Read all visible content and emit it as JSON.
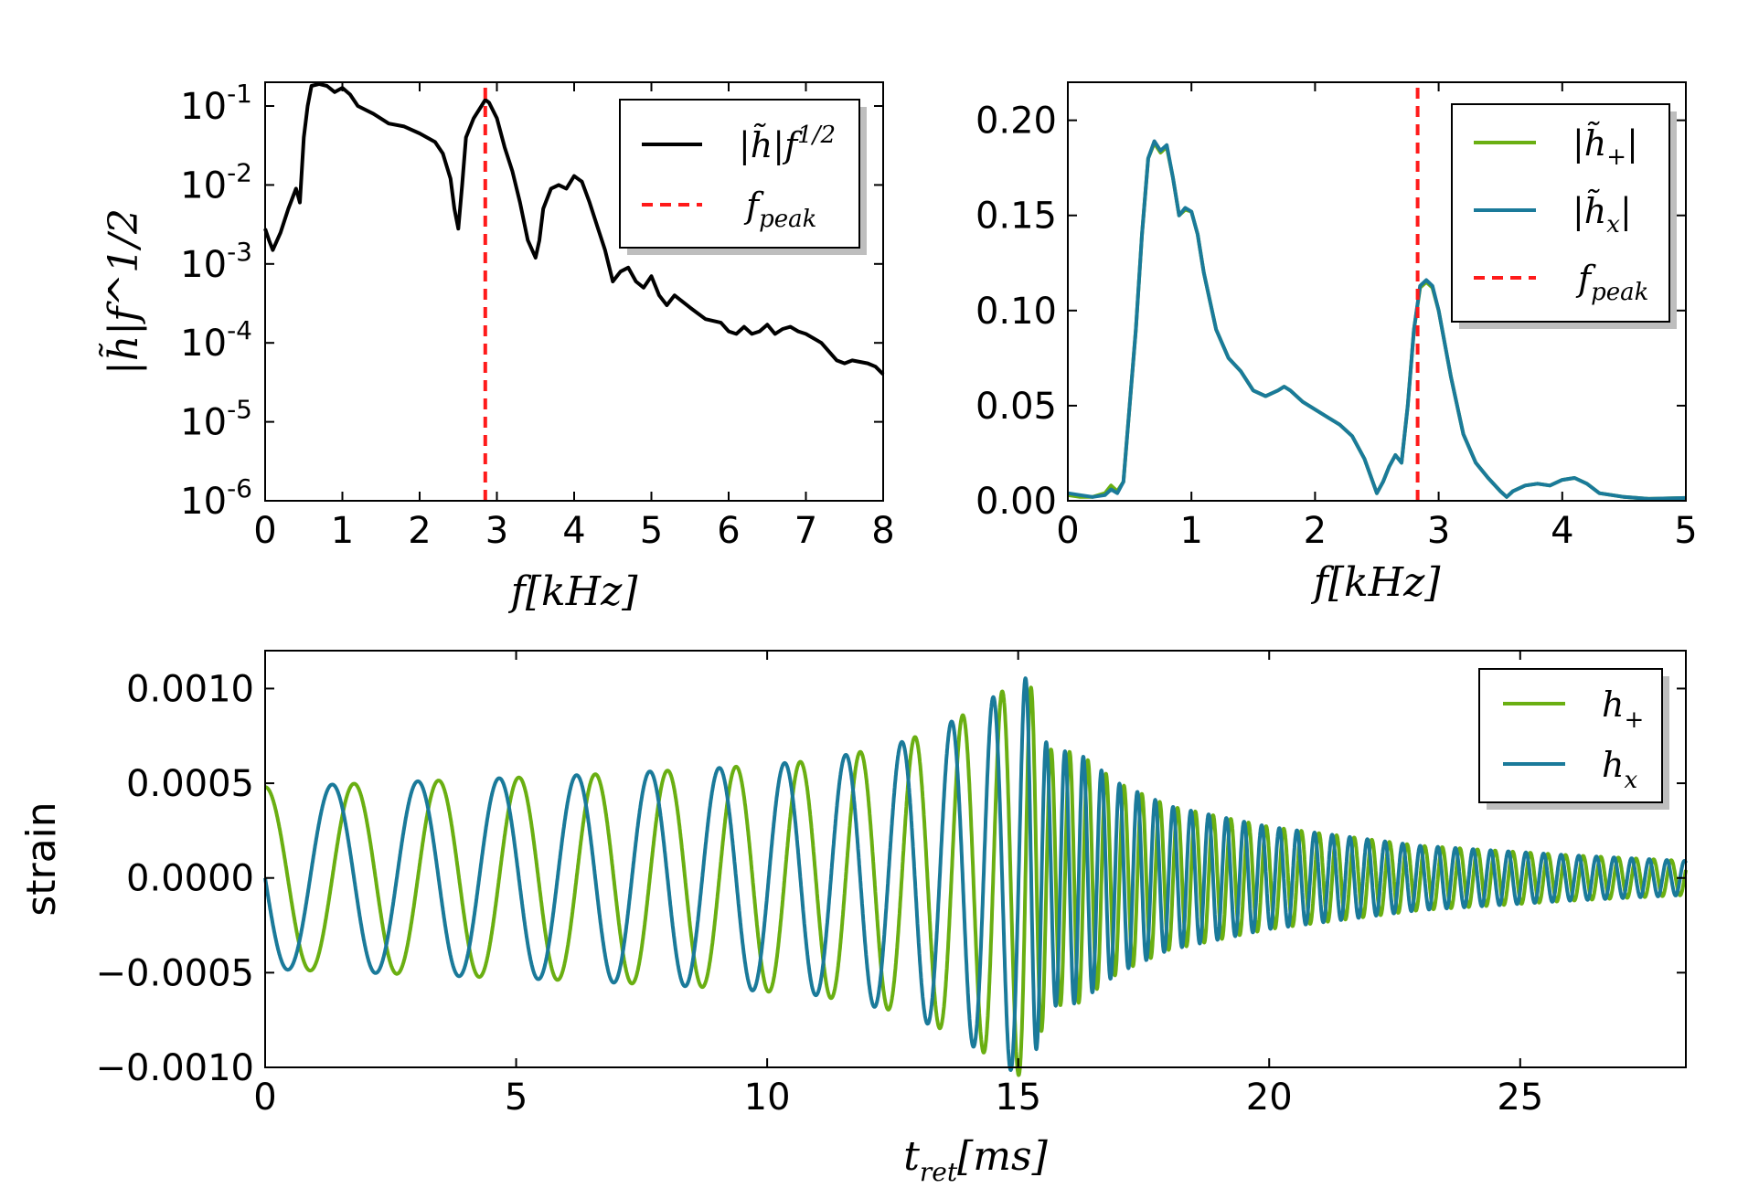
{
  "colors": {
    "black": "#000000",
    "green": "#6aaf12",
    "blue": "#1a7a9a",
    "red": "#ff1a1a"
  },
  "chart_data": [
    {
      "type": "line",
      "xlabel": "f[kHz]",
      "ylabel": "|h̃|f^1/2",
      "xlim": [
        0,
        8
      ],
      "ylim": [
        1e-06,
        0.2
      ],
      "yscale": "log",
      "grid": false,
      "legend_position": "top-right",
      "x_ticks": [
        "0",
        "1",
        "2",
        "3",
        "4",
        "5",
        "6",
        "7",
        "8"
      ],
      "y_ticks": [
        {
          "base": "10",
          "exp": "-1"
        },
        {
          "base": "10",
          "exp": "-2"
        },
        {
          "base": "10",
          "exp": "-3"
        },
        {
          "base": "10",
          "exp": "-4"
        },
        {
          "base": "10",
          "exp": "-5"
        },
        {
          "base": "10",
          "exp": "-6"
        }
      ],
      "series": [
        {
          "name": "|h̃|f^1/2",
          "legend_base": "|h̃|f",
          "legend_sup": "1/2",
          "color": "#000000",
          "style": "solid",
          "x": [
            0,
            0.05,
            0.1,
            0.2,
            0.3,
            0.4,
            0.45,
            0.5,
            0.55,
            0.6,
            0.7,
            0.8,
            0.9,
            1.0,
            1.1,
            1.2,
            1.4,
            1.6,
            1.8,
            2.0,
            2.2,
            2.3,
            2.4,
            2.45,
            2.5,
            2.55,
            2.6,
            2.7,
            2.8,
            2.85,
            2.9,
            3.0,
            3.1,
            3.2,
            3.3,
            3.4,
            3.5,
            3.55,
            3.6,
            3.7,
            3.8,
            3.9,
            4.0,
            4.1,
            4.2,
            4.3,
            4.4,
            4.5,
            4.6,
            4.7,
            4.8,
            4.9,
            5.0,
            5.1,
            5.2,
            5.3,
            5.5,
            5.7,
            5.9,
            6.0,
            6.1,
            6.2,
            6.3,
            6.4,
            6.5,
            6.6,
            6.7,
            6.8,
            6.9,
            7.0,
            7.2,
            7.4,
            7.5,
            7.6,
            7.8,
            7.9,
            8.0
          ],
          "y": [
            0.0028,
            0.002,
            0.0015,
            0.0025,
            0.005,
            0.009,
            0.006,
            0.04,
            0.1,
            0.18,
            0.19,
            0.18,
            0.15,
            0.17,
            0.14,
            0.1,
            0.08,
            0.06,
            0.055,
            0.045,
            0.035,
            0.025,
            0.012,
            0.005,
            0.0028,
            0.01,
            0.04,
            0.07,
            0.1,
            0.12,
            0.11,
            0.07,
            0.03,
            0.015,
            0.006,
            0.002,
            0.0012,
            0.002,
            0.005,
            0.009,
            0.01,
            0.009,
            0.013,
            0.011,
            0.006,
            0.003,
            0.0015,
            0.0006,
            0.0008,
            0.0009,
            0.0006,
            0.0005,
            0.0007,
            0.0004,
            0.0003,
            0.0004,
            0.00028,
            0.0002,
            0.00018,
            0.00014,
            0.00013,
            0.00016,
            0.00013,
            0.00014,
            0.00017,
            0.00013,
            0.00015,
            0.00016,
            0.00014,
            0.00013,
            0.0001,
            6e-05,
            5.5e-05,
            6e-05,
            5.5e-05,
            5e-05,
            4e-05
          ]
        },
        {
          "name": "f_peak",
          "legend_base": "f",
          "legend_sub": "peak",
          "color": "#ff1a1a",
          "style": "dashed",
          "x": [
            2.85,
            2.85
          ],
          "y": [
            1e-06,
            0.2
          ]
        }
      ]
    },
    {
      "type": "line",
      "xlabel": "f[kHz]",
      "xlim": [
        0,
        5
      ],
      "ylim": [
        0,
        0.22
      ],
      "grid": false,
      "legend_position": "top-right",
      "x_ticks": [
        "0",
        "1",
        "2",
        "3",
        "4",
        "5"
      ],
      "y_ticks": [
        "0.00",
        "0.05",
        "0.10",
        "0.15",
        "0.20"
      ],
      "series": [
        {
          "name": "|h̃₊|",
          "legend_base": "|h̃",
          "legend_sub": "+",
          "legend_tail": "|",
          "color": "#6aaf12",
          "style": "solid",
          "x": [
            0,
            0.1,
            0.2,
            0.3,
            0.35,
            0.4,
            0.45,
            0.5,
            0.55,
            0.6,
            0.65,
            0.7,
            0.75,
            0.8,
            0.85,
            0.9,
            0.95,
            1.0,
            1.05,
            1.1,
            1.2,
            1.3,
            1.4,
            1.5,
            1.6,
            1.7,
            1.75,
            1.8,
            1.9,
            2.0,
            2.1,
            2.2,
            2.3,
            2.4,
            2.5,
            2.55,
            2.6,
            2.65,
            2.7,
            2.75,
            2.8,
            2.85,
            2.9,
            2.95,
            3.0,
            3.1,
            3.2,
            3.3,
            3.4,
            3.5,
            3.55,
            3.6,
            3.7,
            3.8,
            3.9,
            4.0,
            4.1,
            4.2,
            4.3,
            4.5,
            4.7,
            5.0
          ],
          "y": [
            0.003,
            0.002,
            0.002,
            0.004,
            0.008,
            0.005,
            0.01,
            0.05,
            0.09,
            0.14,
            0.18,
            0.188,
            0.183,
            0.186,
            0.17,
            0.15,
            0.153,
            0.152,
            0.14,
            0.12,
            0.09,
            0.075,
            0.068,
            0.058,
            0.055,
            0.058,
            0.06,
            0.058,
            0.052,
            0.048,
            0.044,
            0.04,
            0.034,
            0.022,
            0.004,
            0.01,
            0.018,
            0.024,
            0.02,
            0.05,
            0.09,
            0.112,
            0.115,
            0.112,
            0.1,
            0.065,
            0.035,
            0.02,
            0.012,
            0.005,
            0.002,
            0.005,
            0.008,
            0.009,
            0.008,
            0.011,
            0.012,
            0.009,
            0.004,
            0.002,
            0.001,
            0.0015
          ]
        },
        {
          "name": "|h̃ₓ|",
          "legend_base": "|h̃",
          "legend_sub": "x",
          "legend_tail": "|",
          "color": "#1a7a9a",
          "style": "solid",
          "x": [
            0,
            0.1,
            0.2,
            0.3,
            0.35,
            0.4,
            0.45,
            0.5,
            0.55,
            0.6,
            0.65,
            0.7,
            0.75,
            0.8,
            0.85,
            0.9,
            0.95,
            1.0,
            1.05,
            1.1,
            1.2,
            1.3,
            1.4,
            1.5,
            1.6,
            1.7,
            1.75,
            1.8,
            1.9,
            2.0,
            2.1,
            2.2,
            2.3,
            2.4,
            2.5,
            2.55,
            2.6,
            2.65,
            2.7,
            2.75,
            2.8,
            2.85,
            2.9,
            2.95,
            3.0,
            3.1,
            3.2,
            3.3,
            3.4,
            3.5,
            3.55,
            3.6,
            3.7,
            3.8,
            3.9,
            4.0,
            4.1,
            4.2,
            4.3,
            4.5,
            4.7,
            5.0
          ],
          "y": [
            0.004,
            0.003,
            0.002,
            0.003,
            0.006,
            0.004,
            0.01,
            0.05,
            0.09,
            0.14,
            0.18,
            0.189,
            0.184,
            0.187,
            0.17,
            0.15,
            0.154,
            0.152,
            0.14,
            0.12,
            0.09,
            0.075,
            0.068,
            0.058,
            0.055,
            0.058,
            0.06,
            0.058,
            0.052,
            0.048,
            0.044,
            0.04,
            0.034,
            0.022,
            0.004,
            0.01,
            0.018,
            0.024,
            0.02,
            0.05,
            0.09,
            0.113,
            0.116,
            0.113,
            0.1,
            0.065,
            0.035,
            0.02,
            0.012,
            0.005,
            0.002,
            0.005,
            0.008,
            0.009,
            0.008,
            0.011,
            0.012,
            0.009,
            0.004,
            0.002,
            0.001,
            0.0015
          ]
        },
        {
          "name": "f_peak",
          "legend_base": "f",
          "legend_sub": "peak",
          "color": "#ff1a1a",
          "style": "dashed",
          "x": [
            2.83,
            2.83
          ],
          "y": [
            0,
            0.22
          ]
        }
      ]
    },
    {
      "type": "line",
      "xlabel": "t_ret[ms]",
      "ylabel": "strain",
      "xlim": [
        0,
        28.3
      ],
      "ylim": [
        -0.001,
        0.0012
      ],
      "grid": false,
      "legend_position": "top-right",
      "x_ticks": [
        "0",
        "5",
        "10",
        "15",
        "20",
        "25"
      ],
      "y_ticks": [
        "0.0010",
        "0.0005",
        "0.0000",
        "−0.0005",
        "−0.0010"
      ],
      "waveform": {
        "t_merger": 15.2,
        "envelope": {
          "t": [
            0,
            3,
            6,
            9,
            11,
            12.5,
            13.5,
            14.3,
            15.0,
            15.2,
            15.6,
            16.2,
            17,
            18,
            20,
            23,
            26,
            28.3
          ],
          "amp": [
            0.00048,
            0.00051,
            0.00054,
            0.00058,
            0.00062,
            0.0007,
            0.0008,
            0.00092,
            0.00104,
            0.00106,
            0.00068,
            0.00066,
            0.0005,
            0.00038,
            0.00027,
            0.00017,
            0.00012,
            9e-05
          ]
        },
        "frequency": {
          "t": [
            0,
            3,
            6,
            9,
            11,
            12.5,
            13.5,
            14.3,
            15.0,
            15.2,
            15.6,
            17,
            20,
            28.3
          ],
          "khz": [
            0.55,
            0.6,
            0.66,
            0.74,
            0.82,
            0.92,
            1.05,
            1.25,
            1.6,
            2.2,
            2.7,
            2.8,
            2.85,
            2.85
          ]
        }
      },
      "series": [
        {
          "name": "h₊",
          "legend_base": "h",
          "legend_sub": "+",
          "color": "#6aaf12",
          "phase": "cos"
        },
        {
          "name": "hₓ",
          "legend_base": "h",
          "legend_sub": "x",
          "color": "#1a7a9a",
          "phase": "sin"
        }
      ]
    }
  ]
}
